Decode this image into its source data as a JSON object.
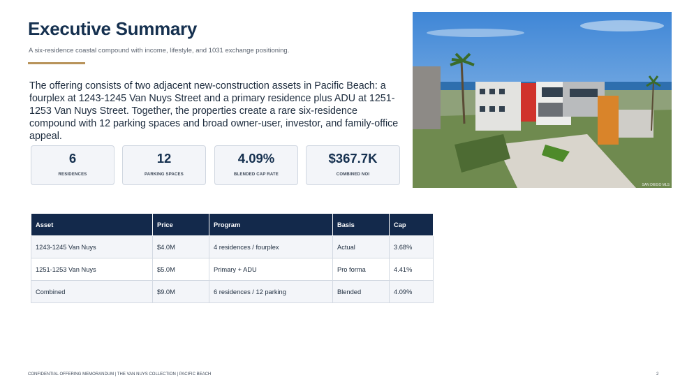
{
  "header": {
    "title": "Executive Summary",
    "subtitle": "A six-residence coastal compound with income, lifestyle, and 1031 exchange positioning."
  },
  "body": "The offering consists of two adjacent new-construction assets in Pacific Beach: a fourplex at 1243-1245 Van Nuys Street and a primary residence plus ADU at 1251-1253 Van Nuys Street. Together, the properties create a rare six-residence compound with 12 parking spaces and broad owner-user, investor, and family-office appeal.",
  "stats": [
    {
      "value": "6",
      "label": "RESIDENCES"
    },
    {
      "value": "12",
      "label": "PARKING SPACES"
    },
    {
      "value": "4.09%",
      "label": "BLENDED CAP RATE"
    },
    {
      "value": "$367.7K",
      "label": "COMBINED NOI"
    }
  ],
  "photo_credit": "SAN DIEGO MLS",
  "table": {
    "columns": [
      "Asset",
      "Price",
      "Program",
      "Basis",
      "Cap"
    ],
    "rows": [
      [
        "1243-1245 Van Nuys",
        "$4.0M",
        "4 residences / fourplex",
        "Actual",
        "3.68%"
      ],
      [
        "1251-1253 Van Nuys",
        "$5.0M",
        "Primary + ADU",
        "Pro forma",
        "4.41%"
      ],
      [
        "Combined",
        "$9.0M",
        "6 residences / 12 parking",
        "Blended",
        "4.09%"
      ]
    ]
  },
  "footer": {
    "text": "CONFIDENTIAL OFFERING MEMORANDUM | THE VAN NUYS COLLECTION | PACIFIC BEACH",
    "page": "2"
  }
}
